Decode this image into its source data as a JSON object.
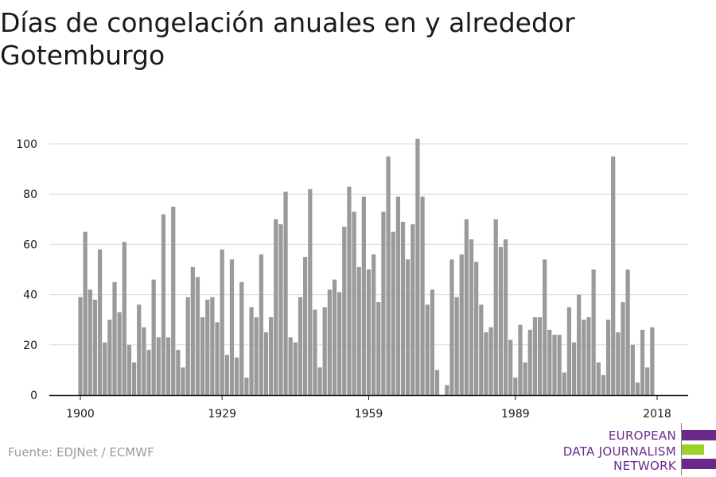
{
  "chart_data": {
    "type": "bar",
    "title": "Días de congelación anuales en y alrededor Gotemburgo",
    "xlabel": "",
    "ylabel": "",
    "x": [
      1900,
      1901,
      1902,
      1903,
      1904,
      1905,
      1906,
      1907,
      1908,
      1909,
      1910,
      1911,
      1912,
      1913,
      1914,
      1915,
      1916,
      1917,
      1918,
      1919,
      1920,
      1921,
      1922,
      1923,
      1924,
      1925,
      1926,
      1927,
      1928,
      1929,
      1930,
      1931,
      1932,
      1933,
      1934,
      1935,
      1936,
      1937,
      1938,
      1939,
      1940,
      1941,
      1942,
      1943,
      1944,
      1945,
      1946,
      1947,
      1948,
      1949,
      1950,
      1951,
      1952,
      1953,
      1954,
      1955,
      1956,
      1957,
      1958,
      1959,
      1960,
      1961,
      1962,
      1963,
      1964,
      1965,
      1966,
      1967,
      1968,
      1969,
      1970,
      1971,
      1972,
      1973,
      1974,
      1975,
      1976,
      1977,
      1978,
      1979,
      1980,
      1981,
      1982,
      1983,
      1984,
      1985,
      1986,
      1987,
      1988,
      1989,
      1990,
      1991,
      1992,
      1993,
      1994,
      1995,
      1996,
      1997,
      1998,
      1999,
      2000,
      2001,
      2002,
      2003,
      2004,
      2005,
      2006,
      2007,
      2008,
      2009,
      2010,
      2011,
      2012,
      2013,
      2014,
      2015,
      2016,
      2017,
      2018
    ],
    "values": [
      39,
      65,
      42,
      38,
      58,
      21,
      30,
      45,
      33,
      61,
      20,
      13,
      36,
      27,
      18,
      46,
      23,
      72,
      23,
      75,
      18,
      11,
      39,
      51,
      47,
      31,
      38,
      39,
      29,
      58,
      16,
      54,
      15,
      45,
      7,
      35,
      31,
      56,
      25,
      31,
      70,
      68,
      81,
      23,
      21,
      39,
      55,
      82,
      34,
      11,
      35,
      42,
      46,
      41,
      67,
      83,
      73,
      51,
      79,
      50,
      56,
      37,
      73,
      95,
      65,
      79,
      69,
      54,
      68,
      102,
      79,
      36,
      42,
      10,
      0,
      4,
      54,
      39,
      56,
      70,
      62,
      53,
      36,
      25,
      27,
      70,
      59,
      62,
      22,
      7,
      28,
      13,
      26,
      31,
      31,
      54,
      26,
      24,
      24,
      9,
      35,
      21,
      40,
      30,
      31,
      50,
      13,
      8,
      30,
      95,
      25,
      37,
      50,
      20,
      5,
      26,
      11,
      27,
      0
    ],
    "xticks": [
      "1900",
      "1929",
      "1959",
      "1989",
      "2018"
    ],
    "xtick_values": [
      1900,
      1929,
      1959,
      1989,
      2018
    ],
    "yticks": [
      "0",
      "20",
      "40",
      "60",
      "80",
      "100"
    ],
    "ytick_values": [
      0,
      20,
      40,
      60,
      80,
      100
    ],
    "ylim": [
      0,
      105
    ],
    "grid": true,
    "colors": {
      "bar": "#9a9a9a",
      "grid": "#d9d9d9",
      "axis": "#1a1a1a"
    }
  },
  "source": "Fuente: EDJNet / ECMWF",
  "logo": {
    "lines": [
      "EUROPEAN",
      "DATA JOURNALISM",
      "NETWORK"
    ],
    "colors": {
      "text": "#6b2a8a",
      "purple": "#6b2a8a",
      "green": "#9bd12a"
    }
  }
}
